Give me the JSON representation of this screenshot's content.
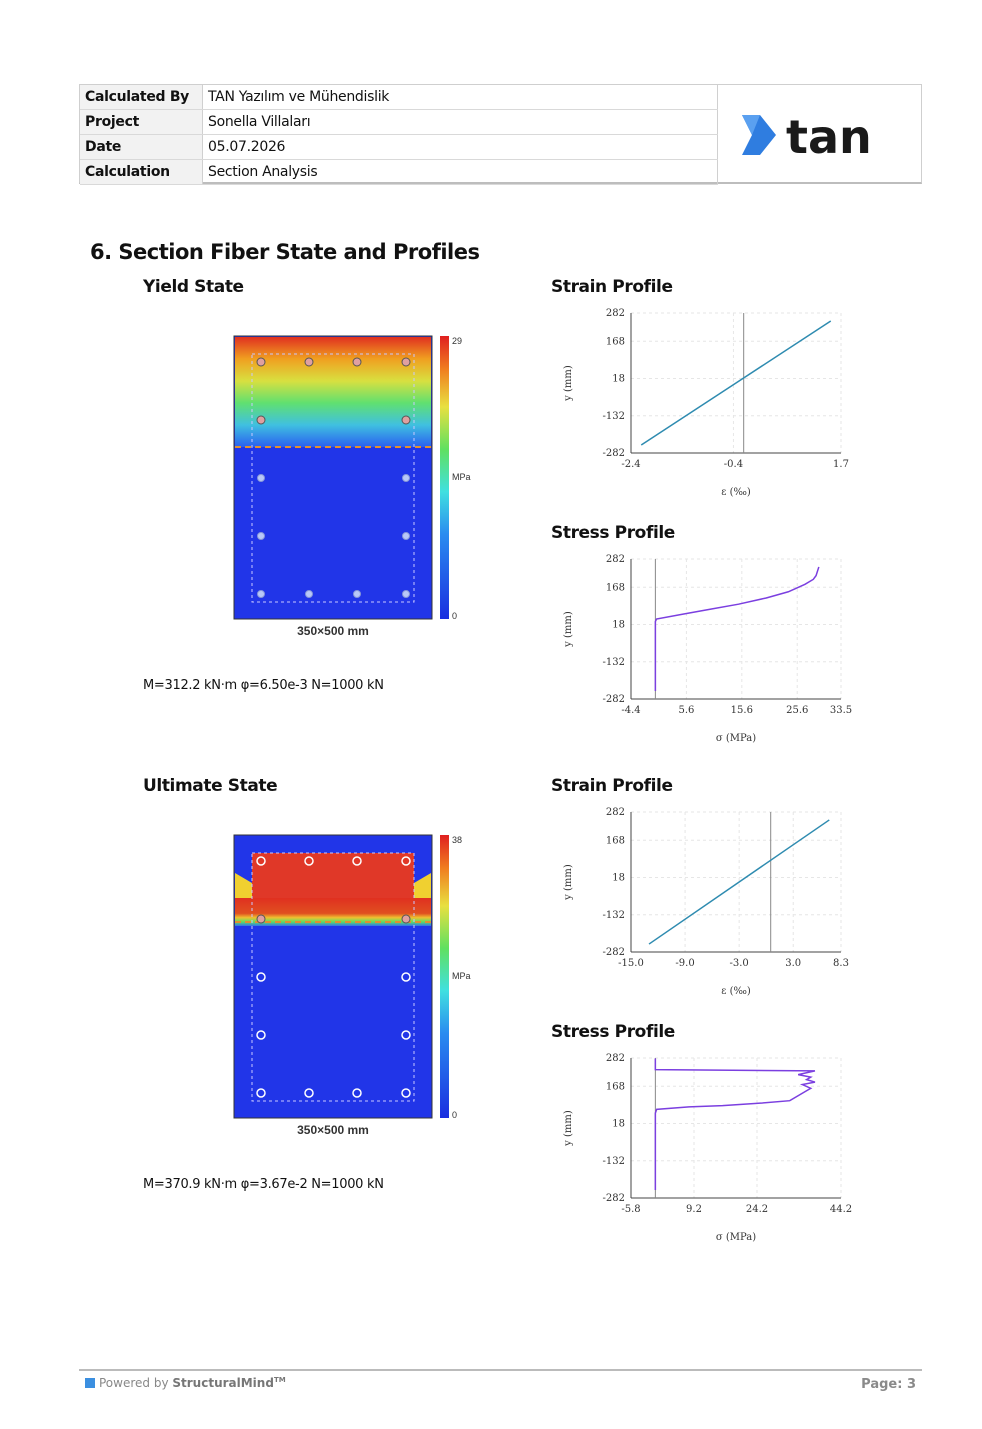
{
  "header": {
    "rows": [
      {
        "key": "Calculated By",
        "value": "TAN Yazılım ve Mühendislik"
      },
      {
        "key": "Project",
        "value": "Sonella Villaları"
      },
      {
        "key": "Date",
        "value": "05.07.2026"
      },
      {
        "key": "Calculation",
        "value": "Section Analysis"
      }
    ],
    "logo_text": "tan"
  },
  "section_title": "6. Section Fiber State and Profiles",
  "yield": {
    "title": "Yield State",
    "section_caption": "350×500 mm",
    "colorbar_max": "29",
    "colorbar_min": "0",
    "colorbar_unit": "MPa",
    "moment": "M=312.2 kN·m φ=6.50e-3 N=1000 kN"
  },
  "ultimate": {
    "title": "Ultimate State",
    "section_caption": "350×500 mm",
    "colorbar_max": "38",
    "colorbar_min": "0",
    "colorbar_unit": "MPa",
    "moment": "M=370.9 kN·m φ=3.67e-2 N=1000 kN"
  },
  "chart_data": [
    {
      "title": "Strain Profile",
      "type": "line",
      "xlabel": "ε (‰)",
      "ylabel": "y (mm)",
      "xticks": [
        "-2.4",
        "-0.4",
        "1.7"
      ],
      "yticks": [
        "282",
        "168",
        "18",
        "-132",
        "-282"
      ],
      "xlim": [
        -2.4,
        1.7
      ],
      "ylim": [
        -282,
        282
      ],
      "vline": -0.2,
      "color": "#2e8bb0",
      "x": [
        -2.2,
        1.5
      ],
      "y": [
        -250,
        250
      ]
    },
    {
      "title": "Stress Profile",
      "type": "line",
      "xlabel": "σ (MPa)",
      "ylabel": "y (mm)",
      "xticks": [
        "-4.4",
        "5.6",
        "15.6",
        "25.6",
        "33.5"
      ],
      "yticks": [
        "282",
        "168",
        "18",
        "-132",
        "-282"
      ],
      "xlim": [
        -4.4,
        33.5
      ],
      "ylim": [
        -282,
        282
      ],
      "vline": 0,
      "color": "#7b3fe0",
      "x": [
        0,
        0,
        0.2,
        5,
        10,
        15,
        20,
        24,
        27,
        28.5,
        29,
        29.5
      ],
      "y": [
        -250,
        30,
        40,
        60,
        80,
        100,
        125,
        150,
        180,
        200,
        215,
        250
      ]
    },
    {
      "title": "Strain Profile",
      "type": "line",
      "xlabel": "ε (‰)",
      "ylabel": "y (mm)",
      "xticks": [
        "-15.0",
        "-9.0",
        "-3.0",
        "3.0",
        "8.3"
      ],
      "yticks": [
        "282",
        "168",
        "18",
        "-132",
        "-282"
      ],
      "xlim": [
        -15,
        8.3
      ],
      "ylim": [
        -282,
        282
      ],
      "vline": 0.5,
      "color": "#2e8bb0",
      "x": [
        -13,
        7
      ],
      "y": [
        -250,
        250
      ]
    },
    {
      "title": "Stress Profile",
      "type": "line",
      "xlabel": "σ (MPa)",
      "ylabel": "y (mm)",
      "xticks": [
        "-5.8",
        "9.2",
        "24.2",
        "44.2"
      ],
      "yticks": [
        "282",
        "168",
        "18",
        "-132",
        "-282"
      ],
      "xlim": [
        -5.8,
        44.2
      ],
      "ylim": [
        -282,
        282
      ],
      "vline": 0,
      "color": "#7b3fe0",
      "x": [
        0,
        0,
        0.3,
        8,
        16,
        25,
        32,
        36,
        37,
        35,
        38,
        36,
        37,
        34,
        38,
        0,
        0
      ],
      "y": [
        -250,
        60,
        75,
        85,
        90,
        100,
        110,
        150,
        160,
        175,
        185,
        195,
        205,
        215,
        230,
        235,
        280
      ],
      "labels_extra": "9.2 24.2"
    }
  ]
}
